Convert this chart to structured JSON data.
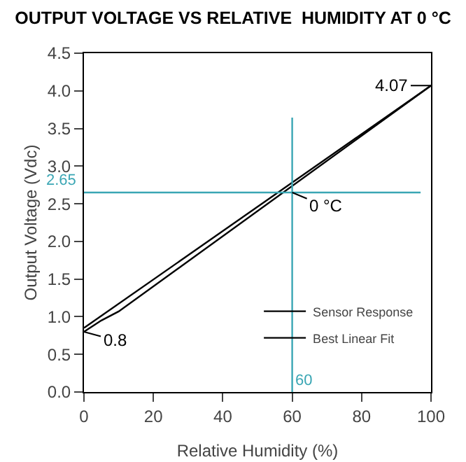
{
  "chart_data": {
    "type": "line",
    "title": "OUTPUT VOLTAGE VS RELATIVE  HUMIDITY AT 0 °C",
    "xlabel": "Relative Humidity (%)",
    "ylabel": "Output Voltage (Vdc)",
    "series": [
      {
        "name": "Sensor Response",
        "color": "#000000",
        "x": [
          0,
          5,
          10,
          100
        ],
        "values": [
          0.8,
          0.95,
          1.07,
          4.07
        ]
      },
      {
        "name": "Best Linear Fit",
        "color": "#000000",
        "x": [
          0,
          100
        ],
        "values": [
          0.85,
          4.07
        ]
      }
    ],
    "xlim": [
      0,
      100
    ],
    "xticks": [
      0,
      20,
      40,
      60,
      80,
      100
    ],
    "ylim": [
      0,
      4.5
    ],
    "yticks": [
      {
        "value": 0,
        "label": "0.0"
      },
      0.5,
      {
        "value": 1,
        "label": "1.0"
      },
      1.5,
      {
        "value": 2,
        "label": "2.0"
      },
      2.5,
      {
        "value": 3,
        "label": "3.0"
      },
      3.5,
      {
        "value": 4,
        "label": "4.0"
      },
      4.5
    ],
    "ref_lines": [
      {
        "axis": "x",
        "value": 60,
        "label": "60",
        "color": "#3aa6b4"
      },
      {
        "axis": "y",
        "value": 2.65,
        "label": "2.65",
        "color": "#3aa6b4"
      }
    ],
    "annotations": [
      {
        "text": "4.07",
        "x": 100,
        "y": 4.07
      },
      {
        "text": "0.8",
        "x": 0,
        "y": 0.8
      },
      {
        "text": "0 °C",
        "x": 60,
        "y": 2.65
      }
    ],
    "grid": false,
    "legend": "bottom right",
    "marker": "none",
    "line_style": "solid"
  }
}
